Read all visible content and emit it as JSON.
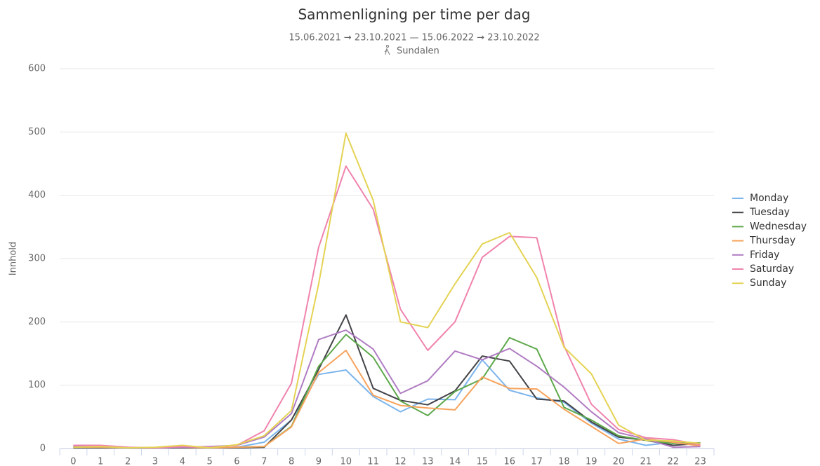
{
  "chart_data": {
    "type": "line",
    "title": "Sammenligning per time per dag",
    "subtitle": "15.06.2021 → 23.10.2021 — 15.06.2022 → 23.10.2022",
    "location": "Sundalen",
    "y_label": "Innhold",
    "categories": [
      "0",
      "1",
      "2",
      "3",
      "4",
      "5",
      "6",
      "7",
      "8",
      "9",
      "10",
      "11",
      "12",
      "13",
      "14",
      "15",
      "16",
      "17",
      "18",
      "19",
      "20",
      "21",
      "22",
      "23"
    ],
    "ylim": [
      0,
      600
    ],
    "yticks": [
      0,
      100,
      200,
      300,
      400,
      500,
      600
    ],
    "grid": true,
    "legend": "right",
    "series": [
      {
        "name": "Monday",
        "color": "#7cb5ec",
        "values": [
          2,
          2,
          1,
          1,
          2,
          1,
          2,
          10,
          45,
          117,
          124,
          82,
          58,
          78,
          77,
          140,
          92,
          80,
          73,
          40,
          15,
          5,
          10,
          7
        ]
      },
      {
        "name": "Tuesday",
        "color": "#434348",
        "values": [
          1,
          1,
          1,
          1,
          1,
          1,
          1,
          2,
          45,
          125,
          211,
          95,
          76,
          69,
          91,
          146,
          138,
          78,
          75,
          42,
          18,
          13,
          5,
          8
        ]
      },
      {
        "name": "Wednesday",
        "color": "#5ea84c",
        "values": [
          2,
          2,
          1,
          1,
          2,
          1,
          2,
          3,
          35,
          130,
          180,
          144,
          75,
          52,
          90,
          110,
          175,
          157,
          65,
          45,
          20,
          13,
          8,
          9
        ]
      },
      {
        "name": "Thursday",
        "color": "#f7a35c",
        "values": [
          2,
          2,
          1,
          1,
          2,
          1,
          2,
          3,
          34,
          120,
          155,
          84,
          68,
          64,
          61,
          113,
          95,
          94,
          62,
          35,
          8,
          15,
          10,
          4
        ]
      },
      {
        "name": "Friday",
        "color": "#b07cc2",
        "values": [
          3,
          3,
          1,
          1,
          2,
          3,
          5,
          18,
          55,
          172,
          187,
          157,
          87,
          107,
          154,
          140,
          158,
          130,
          97,
          58,
          25,
          15,
          2,
          3
        ]
      },
      {
        "name": "Saturday",
        "color": "#f083ad",
        "values": [
          5,
          5,
          2,
          1,
          3,
          2,
          5,
          28,
          103,
          318,
          446,
          378,
          220,
          155,
          200,
          302,
          335,
          333,
          162,
          70,
          30,
          17,
          14,
          6
        ]
      },
      {
        "name": "Sunday",
        "color": "#e4d354",
        "values": [
          2,
          3,
          1,
          2,
          5,
          1,
          6,
          20,
          60,
          260,
          498,
          392,
          200,
          191,
          260,
          323,
          341,
          270,
          160,
          118,
          37,
          13,
          12,
          8
        ]
      }
    ]
  }
}
